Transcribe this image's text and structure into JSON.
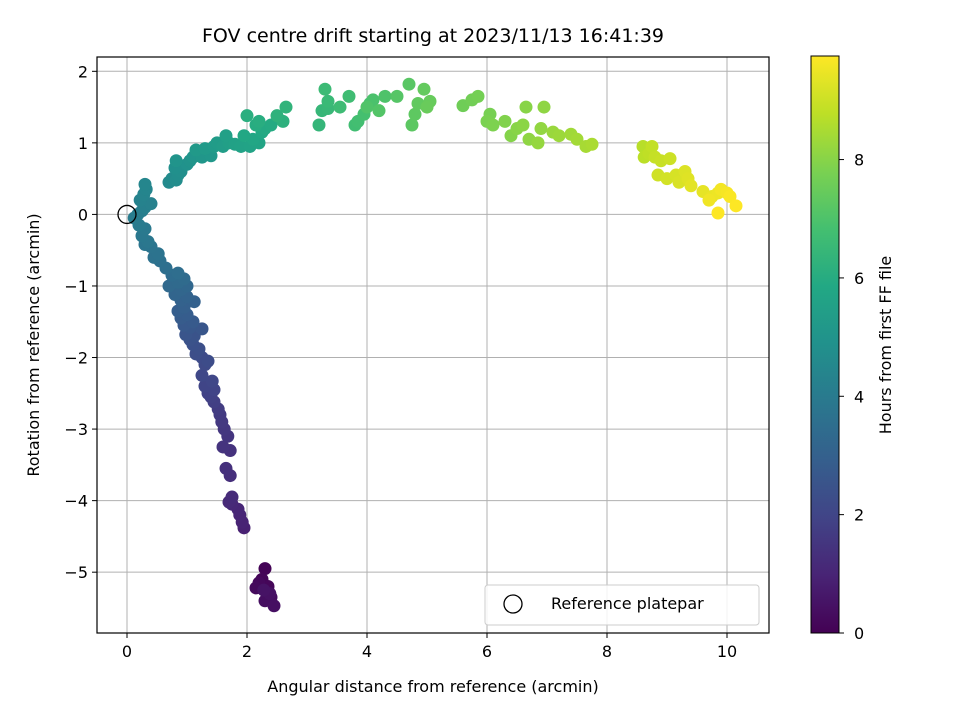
{
  "chart_data": {
    "type": "scatter",
    "title": "FOV centre drift starting at 2023/11/13 16:41:39",
    "xlabel": "Angular distance from reference (arcmin)",
    "ylabel": "Rotation from reference (arcmin)",
    "xlim": [
      -0.5,
      10.7
    ],
    "ylim": [
      -5.85,
      2.2
    ],
    "xticks": [
      0,
      2,
      4,
      6,
      8,
      10
    ],
    "yticks": [
      -5,
      -4,
      -3,
      -2,
      -1,
      0,
      1,
      2
    ],
    "grid": true,
    "colormap": "viridis",
    "colorbar": {
      "label": "Hours from first FF file",
      "range": [
        0,
        9.75
      ],
      "ticks": [
        0,
        2,
        4,
        6,
        8
      ]
    },
    "legend": {
      "position": "bottom-right",
      "entries": [
        "Reference platepar"
      ]
    },
    "reference_point": {
      "x": 0,
      "y": 0
    },
    "series": [
      {
        "points": [
          [
            2.3,
            -4.95,
            0.05
          ],
          [
            2.25,
            -5.1,
            0.1
          ],
          [
            2.35,
            -5.2,
            0.15
          ],
          [
            2.2,
            -5.15,
            0.2
          ],
          [
            2.15,
            -5.22,
            0.25
          ],
          [
            2.4,
            -5.35,
            0.3
          ],
          [
            2.3,
            -5.4,
            0.35
          ],
          [
            2.45,
            -5.47,
            0.4
          ],
          [
            2.38,
            -5.3,
            0.45
          ],
          [
            2.28,
            -5.25,
            0.5
          ],
          [
            1.95,
            -4.38,
            0.9
          ],
          [
            1.92,
            -4.3,
            0.95
          ],
          [
            1.88,
            -4.2,
            1.0
          ],
          [
            1.85,
            -4.12,
            1.05
          ],
          [
            1.75,
            -4.05,
            1.1
          ],
          [
            1.7,
            -4.02,
            1.15
          ],
          [
            1.75,
            -3.95,
            1.2
          ],
          [
            1.72,
            -3.65,
            1.3
          ],
          [
            1.65,
            -3.55,
            1.35
          ],
          [
            1.72,
            -3.3,
            1.4
          ],
          [
            1.6,
            -3.25,
            1.45
          ],
          [
            1.68,
            -3.1,
            1.5
          ],
          [
            1.62,
            -3.0,
            1.55
          ],
          [
            1.58,
            -2.9,
            1.6
          ],
          [
            1.55,
            -2.8,
            1.65
          ],
          [
            1.52,
            -2.72,
            1.7
          ],
          [
            1.45,
            -2.62,
            1.8
          ],
          [
            1.4,
            -2.55,
            1.85
          ],
          [
            1.35,
            -2.5,
            1.9
          ],
          [
            1.45,
            -2.45,
            1.95
          ],
          [
            1.3,
            -2.4,
            2.0
          ],
          [
            1.42,
            -2.33,
            2.05
          ],
          [
            1.25,
            -2.25,
            2.1
          ],
          [
            1.3,
            -2.1,
            2.15
          ],
          [
            1.25,
            -2.0,
            2.2
          ],
          [
            1.35,
            -2.05,
            2.25
          ],
          [
            1.15,
            -1.95,
            2.3
          ],
          [
            1.2,
            -1.88,
            2.35
          ],
          [
            1.1,
            -1.82,
            2.4
          ],
          [
            1.05,
            -1.75,
            2.45
          ],
          [
            1.12,
            -1.7,
            2.5
          ],
          [
            0.98,
            -1.68,
            2.55
          ],
          [
            1.25,
            -1.6,
            2.6
          ],
          [
            1.05,
            -1.58,
            2.65
          ],
          [
            0.95,
            -1.55,
            2.7
          ],
          [
            1.1,
            -1.5,
            2.75
          ],
          [
            0.9,
            -1.45,
            2.8
          ],
          [
            1.0,
            -1.4,
            2.85
          ],
          [
            0.85,
            -1.35,
            2.9
          ],
          [
            0.95,
            -1.3,
            2.95
          ],
          [
            1.12,
            -1.22,
            3.0
          ],
          [
            0.9,
            -1.2,
            3.05
          ],
          [
            1.0,
            -1.15,
            3.1
          ],
          [
            0.8,
            -1.12,
            3.15
          ],
          [
            0.9,
            -1.05,
            3.2
          ],
          [
            1.0,
            -1.0,
            3.25
          ],
          [
            0.7,
            -1.0,
            3.3
          ],
          [
            0.85,
            -0.95,
            3.35
          ],
          [
            0.95,
            -0.9,
            3.4
          ],
          [
            0.75,
            -0.85,
            3.45
          ],
          [
            0.85,
            -0.82,
            3.5
          ],
          [
            0.65,
            -0.75,
            3.55
          ],
          [
            0.55,
            -0.65,
            3.6
          ],
          [
            0.45,
            -0.6,
            3.65
          ],
          [
            0.52,
            -0.55,
            3.7
          ],
          [
            0.4,
            -0.45,
            3.75
          ],
          [
            0.3,
            -0.42,
            3.8
          ],
          [
            0.35,
            -0.38,
            3.85
          ],
          [
            0.25,
            -0.3,
            3.9
          ],
          [
            0.3,
            -0.2,
            3.95
          ],
          [
            0.2,
            -0.15,
            4.0
          ],
          [
            0.12,
            -0.05,
            4.05
          ],
          [
            0.18,
            0.0,
            4.1
          ],
          [
            0.25,
            0.05,
            4.15
          ],
          [
            0.3,
            0.1,
            4.2
          ],
          [
            0.4,
            0.15,
            4.25
          ],
          [
            0.22,
            0.2,
            4.3
          ],
          [
            0.28,
            0.28,
            4.35
          ],
          [
            0.32,
            0.35,
            4.4
          ],
          [
            0.3,
            0.42,
            4.45
          ],
          [
            0.7,
            0.45,
            4.6
          ],
          [
            0.75,
            0.5,
            4.65
          ],
          [
            0.82,
            0.48,
            4.7
          ],
          [
            0.85,
            0.55,
            4.75
          ],
          [
            0.9,
            0.6,
            4.8
          ],
          [
            0.8,
            0.65,
            4.85
          ],
          [
            1.0,
            0.7,
            4.9
          ],
          [
            1.05,
            0.75,
            4.95
          ],
          [
            0.82,
            0.75,
            5.0
          ],
          [
            1.1,
            0.8,
            5.05
          ],
          [
            1.25,
            0.8,
            5.1
          ],
          [
            1.4,
            0.82,
            5.15
          ],
          [
            1.15,
            0.9,
            5.2
          ],
          [
            1.3,
            0.92,
            5.25
          ],
          [
            1.45,
            0.95,
            5.3
          ],
          [
            1.5,
            1.0,
            5.35
          ],
          [
            1.6,
            0.95,
            5.4
          ],
          [
            1.7,
            1.0,
            5.45
          ],
          [
            1.65,
            1.1,
            5.5
          ],
          [
            1.8,
            0.98,
            5.55
          ],
          [
            1.9,
            0.95,
            5.6
          ],
          [
            2.05,
            0.95,
            5.65
          ],
          [
            2.2,
            1.0,
            5.7
          ],
          [
            2.1,
            1.05,
            5.75
          ],
          [
            1.95,
            1.1,
            5.8
          ],
          [
            2.25,
            1.15,
            5.85
          ],
          [
            2.3,
            1.2,
            5.9
          ],
          [
            2.4,
            1.25,
            5.95
          ],
          [
            2.15,
            1.25,
            6.0
          ],
          [
            2.2,
            1.3,
            6.05
          ],
          [
            2.0,
            1.38,
            6.1
          ],
          [
            2.6,
            1.3,
            6.2
          ],
          [
            2.5,
            1.38,
            6.25
          ],
          [
            2.65,
            1.5,
            6.3
          ],
          [
            3.2,
            1.25,
            6.4
          ],
          [
            3.25,
            1.45,
            6.45
          ],
          [
            3.35,
            1.48,
            6.5
          ],
          [
            3.35,
            1.58,
            6.55
          ],
          [
            3.3,
            1.75,
            6.6
          ],
          [
            3.55,
            1.5,
            6.65
          ],
          [
            3.7,
            1.65,
            6.7
          ],
          [
            3.8,
            1.25,
            6.75
          ],
          [
            3.85,
            1.3,
            6.8
          ],
          [
            3.95,
            1.4,
            6.85
          ],
          [
            4.05,
            1.55,
            6.9
          ],
          [
            4.1,
            1.6,
            6.95
          ],
          [
            4.3,
            1.65,
            7.0
          ],
          [
            4.0,
            1.5,
            7.05
          ],
          [
            4.2,
            1.45,
            7.1
          ],
          [
            4.5,
            1.65,
            7.15
          ],
          [
            4.7,
            1.82,
            7.2
          ],
          [
            4.75,
            1.25,
            7.25
          ],
          [
            4.8,
            1.4,
            7.3
          ],
          [
            4.85,
            1.55,
            7.35
          ],
          [
            4.95,
            1.75,
            7.4
          ],
          [
            5.05,
            1.58,
            7.45
          ],
          [
            5.0,
            1.5,
            7.5
          ],
          [
            5.6,
            1.52,
            7.6
          ],
          [
            5.75,
            1.6,
            7.65
          ],
          [
            5.85,
            1.65,
            7.7
          ],
          [
            6.05,
            1.4,
            7.75
          ],
          [
            6.0,
            1.3,
            7.8
          ],
          [
            6.1,
            1.25,
            7.85
          ],
          [
            6.3,
            1.3,
            7.9
          ],
          [
            6.4,
            1.1,
            7.95
          ],
          [
            6.5,
            1.2,
            8.0
          ],
          [
            6.6,
            1.25,
            8.05
          ],
          [
            6.7,
            1.05,
            8.1
          ],
          [
            6.9,
            1.2,
            8.15
          ],
          [
            6.85,
            1.0,
            8.2
          ],
          [
            7.1,
            1.15,
            8.25
          ],
          [
            6.65,
            1.5,
            8.0
          ],
          [
            6.95,
            1.5,
            8.1
          ],
          [
            7.2,
            1.1,
            8.3
          ],
          [
            7.4,
            1.12,
            8.35
          ],
          [
            7.5,
            1.05,
            8.4
          ],
          [
            7.65,
            0.95,
            8.45
          ],
          [
            7.75,
            0.98,
            8.5
          ],
          [
            8.6,
            0.95,
            8.7
          ],
          [
            8.62,
            0.8,
            8.75
          ],
          [
            8.7,
            0.85,
            8.8
          ],
          [
            8.75,
            0.95,
            8.85
          ],
          [
            8.8,
            0.8,
            8.9
          ],
          [
            8.9,
            0.75,
            8.95
          ],
          [
            9.05,
            0.78,
            9.0
          ],
          [
            8.85,
            0.55,
            9.05
          ],
          [
            9.0,
            0.5,
            9.1
          ],
          [
            9.15,
            0.55,
            9.15
          ],
          [
            9.2,
            0.45,
            9.2
          ],
          [
            9.3,
            0.6,
            9.25
          ],
          [
            9.35,
            0.5,
            9.3
          ],
          [
            9.4,
            0.4,
            9.35
          ],
          [
            9.6,
            0.32,
            9.4
          ],
          [
            9.75,
            0.25,
            9.45
          ],
          [
            9.85,
            0.3,
            9.5
          ],
          [
            9.7,
            0.2,
            9.55
          ],
          [
            9.9,
            0.35,
            9.6
          ],
          [
            10.0,
            0.3,
            9.65
          ],
          [
            10.05,
            0.25,
            9.7
          ],
          [
            9.85,
            0.02,
            9.75
          ],
          [
            10.15,
            0.12,
            9.75
          ]
        ]
      }
    ]
  }
}
